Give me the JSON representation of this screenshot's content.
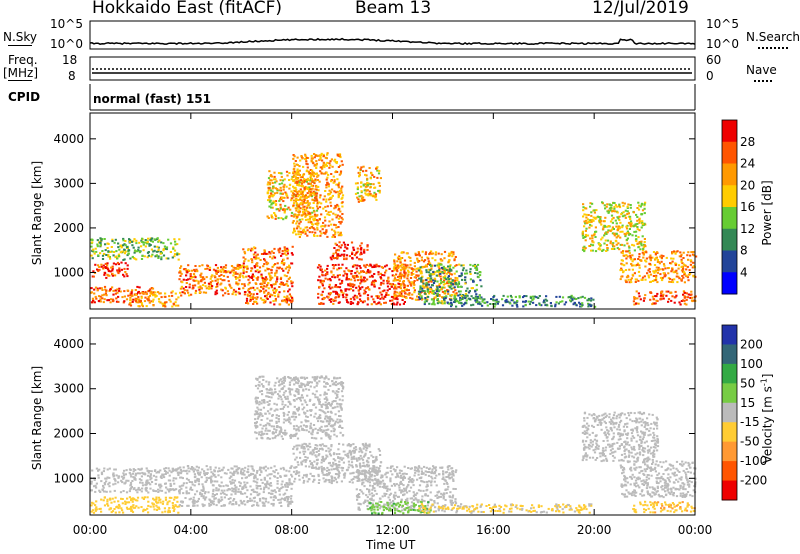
{
  "header": {
    "title": "Hokkaido East (fitACF)",
    "beam": "Beam 13",
    "date": "12/Jul/2019"
  },
  "status_panels": {
    "nsky_label": "N.Sky",
    "nsky_ticks": [
      "10^5",
      "10^0"
    ],
    "nsearch_label": "N.Search",
    "nsearch_ticks": [
      "10^5",
      "10^0"
    ],
    "freq_label_line1": "Freq.",
    "freq_label_line2": "[MHz]",
    "freq_ticks": [
      "18",
      "8"
    ],
    "nave_label": "Nave",
    "nave_ticks": [
      "60",
      "0"
    ],
    "cpid_label": "CPID",
    "cpid_text": "normal (fast) 151"
  },
  "chart_data": [
    {
      "type": "heatmap",
      "title": "",
      "ylabel": "Slant Range [km]",
      "xlabel": "",
      "y_ticks": [
        "4000",
        "3000",
        "2000",
        "1000"
      ],
      "y_tick_values": [
        4000,
        3000,
        2000,
        1000
      ],
      "ylim": [
        180,
        4580
      ],
      "colorbar": {
        "label": "Power [dB]",
        "ticks": [
          "28",
          "24",
          "20",
          "16",
          "12",
          "8",
          "4"
        ],
        "colors": [
          "#ee0000",
          "#ff5500",
          "#ff9900",
          "#ffcc00",
          "#66cc33",
          "#338855",
          "#224499",
          "#0000ff"
        ]
      },
      "scatter_regions": [
        {
          "x": [
            0.0,
            1.5
          ],
          "y": [
            900,
            1250
          ],
          "value": 28
        },
        {
          "x": [
            0.0,
            2.5
          ],
          "y": [
            350,
            700
          ],
          "value": 26
        },
        {
          "x": [
            1.5,
            3.5
          ],
          "y": [
            250,
            600
          ],
          "value": 22
        },
        {
          "x": [
            0.0,
            3.5
          ],
          "y": [
            1300,
            1800
          ],
          "value": 14
        },
        {
          "x": [
            3.5,
            6.0
          ],
          "y": [
            500,
            1200
          ],
          "value": 24
        },
        {
          "x": [
            6.0,
            8.0
          ],
          "y": [
            300,
            1600
          ],
          "value": 24
        },
        {
          "x": [
            7.0,
            9.0
          ],
          "y": [
            2200,
            3300
          ],
          "value": 20
        },
        {
          "x": [
            8.0,
            10.0
          ],
          "y": [
            1800,
            3700
          ],
          "value": 22
        },
        {
          "x": [
            9.5,
            11.0
          ],
          "y": [
            1300,
            1700
          ],
          "value": 28
        },
        {
          "x": [
            9.0,
            12.5
          ],
          "y": [
            300,
            1200
          ],
          "value": 28
        },
        {
          "x": [
            12.0,
            14.5
          ],
          "y": [
            400,
            1500
          ],
          "value": 22
        },
        {
          "x": [
            10.5,
            11.5
          ],
          "y": [
            2600,
            3400
          ],
          "value": 20
        },
        {
          "x": [
            13.0,
            15.5
          ],
          "y": [
            300,
            1200
          ],
          "value": 12
        },
        {
          "x": [
            14.0,
            20.0
          ],
          "y": [
            250,
            500
          ],
          "value": 10
        },
        {
          "x": [
            19.5,
            22.0
          ],
          "y": [
            1500,
            2600
          ],
          "value": 18
        },
        {
          "x": [
            21.0,
            24.0
          ],
          "y": [
            800,
            1500
          ],
          "value": 22
        },
        {
          "x": [
            21.5,
            24.0
          ],
          "y": [
            300,
            600
          ],
          "value": 26
        }
      ]
    },
    {
      "type": "heatmap",
      "title": "",
      "ylabel": "Slant Range [km]",
      "xlabel": "Time UT",
      "x_ticks": [
        "00:00",
        "04:00",
        "08:00",
        "12:00",
        "16:00",
        "20:00",
        "00:00"
      ],
      "x_tick_hours": [
        0,
        4,
        8,
        12,
        16,
        20,
        24
      ],
      "xlim": [
        0,
        24
      ],
      "y_ticks": [
        "4000",
        "3000",
        "2000",
        "1000"
      ],
      "y_tick_values": [
        4000,
        3000,
        2000,
        1000
      ],
      "ylim": [
        180,
        4580
      ],
      "colorbar": {
        "label_main": "Velocity [m s",
        "label_sup": "-1",
        "label_end": "]",
        "ticks": [
          "200",
          "100",
          "50",
          "15",
          "-15",
          "-50",
          "-100",
          "-200"
        ],
        "colors": [
          "#2233aa",
          "#336677",
          "#33aa44",
          "#77cc44",
          "#bbbbbb",
          "#ffcc33",
          "#ff9933",
          "#ff5500",
          "#ee0000"
        ]
      },
      "scatter_regions": [
        {
          "x": [
            0.0,
            3.5
          ],
          "y": [
            700,
            1250
          ],
          "value": 0
        },
        {
          "x": [
            0.0,
            3.5
          ],
          "y": [
            250,
            600
          ],
          "value": -30
        },
        {
          "x": [
            3.5,
            8.0
          ],
          "y": [
            400,
            1300
          ],
          "value": 0
        },
        {
          "x": [
            6.5,
            10.0
          ],
          "y": [
            1900,
            3300
          ],
          "value": 0
        },
        {
          "x": [
            8.0,
            11.5
          ],
          "y": [
            900,
            1800
          ],
          "value": 0
        },
        {
          "x": [
            10.5,
            14.5
          ],
          "y": [
            300,
            1300
          ],
          "value": 0
        },
        {
          "x": [
            11.0,
            13.5
          ],
          "y": [
            220,
            500
          ],
          "value": 40
        },
        {
          "x": [
            13.0,
            20.0
          ],
          "y": [
            250,
            450
          ],
          "value": -20
        },
        {
          "x": [
            19.5,
            22.5
          ],
          "y": [
            1400,
            2500
          ],
          "value": 0
        },
        {
          "x": [
            21.0,
            24.0
          ],
          "y": [
            600,
            1400
          ],
          "value": 0
        },
        {
          "x": [
            21.5,
            24.0
          ],
          "y": [
            250,
            500
          ],
          "value": -40
        }
      ]
    }
  ]
}
